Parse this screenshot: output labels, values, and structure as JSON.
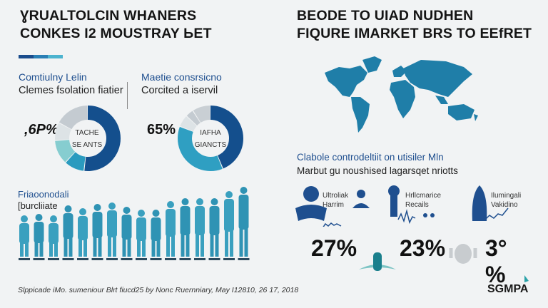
{
  "left": {
    "title_lines": [
      "ƔRUALTOLCIN WHANERS",
      "CONKES I2 MOUSTRAY ЬET"
    ],
    "accent_colors": [
      "#1a4c8c",
      "#2a7fb5",
      "#4cb3cf"
    ],
    "panel1": {
      "heading": "Comtiulny Lelin",
      "subheading": "Clemes fsolation fiatier",
      "percent": ",6P%",
      "donut_label_1": "TACHE",
      "donut_label_2": "SE ANTS",
      "segments": [
        {
          "value": 52,
          "color": "#144f8d"
        },
        {
          "value": 10,
          "color": "#2a9bbf"
        },
        {
          "value": 12,
          "color": "#86cdd0"
        },
        {
          "value": 9,
          "color": "#dde3e6"
        },
        {
          "value": 17,
          "color": "#c4cbd1"
        }
      ]
    },
    "panel2": {
      "heading": "Maetie consrsicno",
      "subheading": "Corcited a iservil",
      "percent": "65%",
      "donut_label_1": "IAFHA",
      "donut_label_2": "GIANCTS",
      "segments": [
        {
          "value": 44,
          "color": "#144f8d"
        },
        {
          "value": 37,
          "color": "#2f9fc2"
        },
        {
          "value": 6,
          "color": "#dde3e6"
        },
        {
          "value": 4,
          "color": "#c4cbd1"
        },
        {
          "value": 9,
          "color": "#c9cfd4"
        }
      ]
    },
    "people": {
      "heading": "Friaoonodali",
      "subheading": "[burcliiate"
    },
    "footer": "Slppicade iMo. sumeniour Blrt fiucd25 by Nonc Ruernniary,  May I12810, 26 17, 2018"
  },
  "right": {
    "title_lines": [
      "BEODE TO UIAD NUDHEN",
      "FIQURE IMARKET BRS TO EEfRET"
    ],
    "map_color": "#1f7ea8",
    "heading": "Clabole controdeltiit on utisiler Mln",
    "subheading": "Marbut gu noushised lagarsqet nriotts",
    "stats": [
      {
        "label_1": "Ultroliak",
        "label_2": "Harrim",
        "value": "27%",
        "icon": "person-icon"
      },
      {
        "label_1": "Hrllcmarice",
        "label_2": "Recails",
        "value": "23%",
        "icon": "tower-icon"
      },
      {
        "label_1": "Ilumingali",
        "label_2": "Vakidino",
        "value": "3°%",
        "icon": "rocket-icon"
      }
    ],
    "logo": "SGMPA"
  }
}
